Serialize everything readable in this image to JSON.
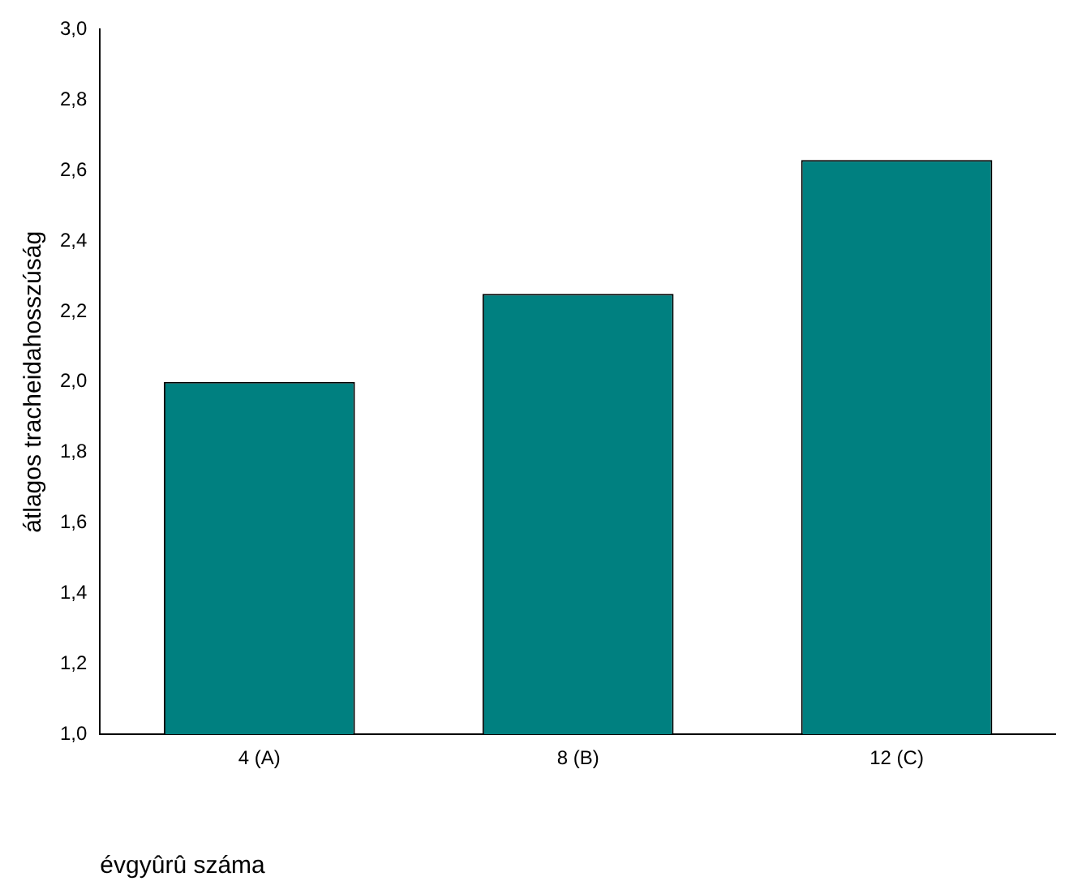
{
  "chart_data": {
    "type": "bar",
    "xlabel": "évgyûrû száma",
    "ylabel": "átlagos tracheidahosszúság",
    "categories": [
      "4 (A)",
      "8 (B)",
      "12 (C)"
    ],
    "values": [
      2.0,
      2.25,
      2.63
    ],
    "color": "#008080",
    "ylim": [
      1.0,
      3.0
    ],
    "yticks": [
      {
        "value": 1.0,
        "label": "1,0"
      },
      {
        "value": 1.2,
        "label": "1,2"
      },
      {
        "value": 1.4,
        "label": "1,4"
      },
      {
        "value": 1.6,
        "label": "1,6"
      },
      {
        "value": 1.8,
        "label": "1,8"
      },
      {
        "value": 2.0,
        "label": "2,0"
      },
      {
        "value": 2.2,
        "label": "2,2"
      },
      {
        "value": 2.4,
        "label": "2,4"
      },
      {
        "value": 2.6,
        "label": "2,6"
      },
      {
        "value": 2.8,
        "label": "2,8"
      },
      {
        "value": 3.0,
        "label": "3,0"
      }
    ],
    "grid": false,
    "legend": false
  }
}
